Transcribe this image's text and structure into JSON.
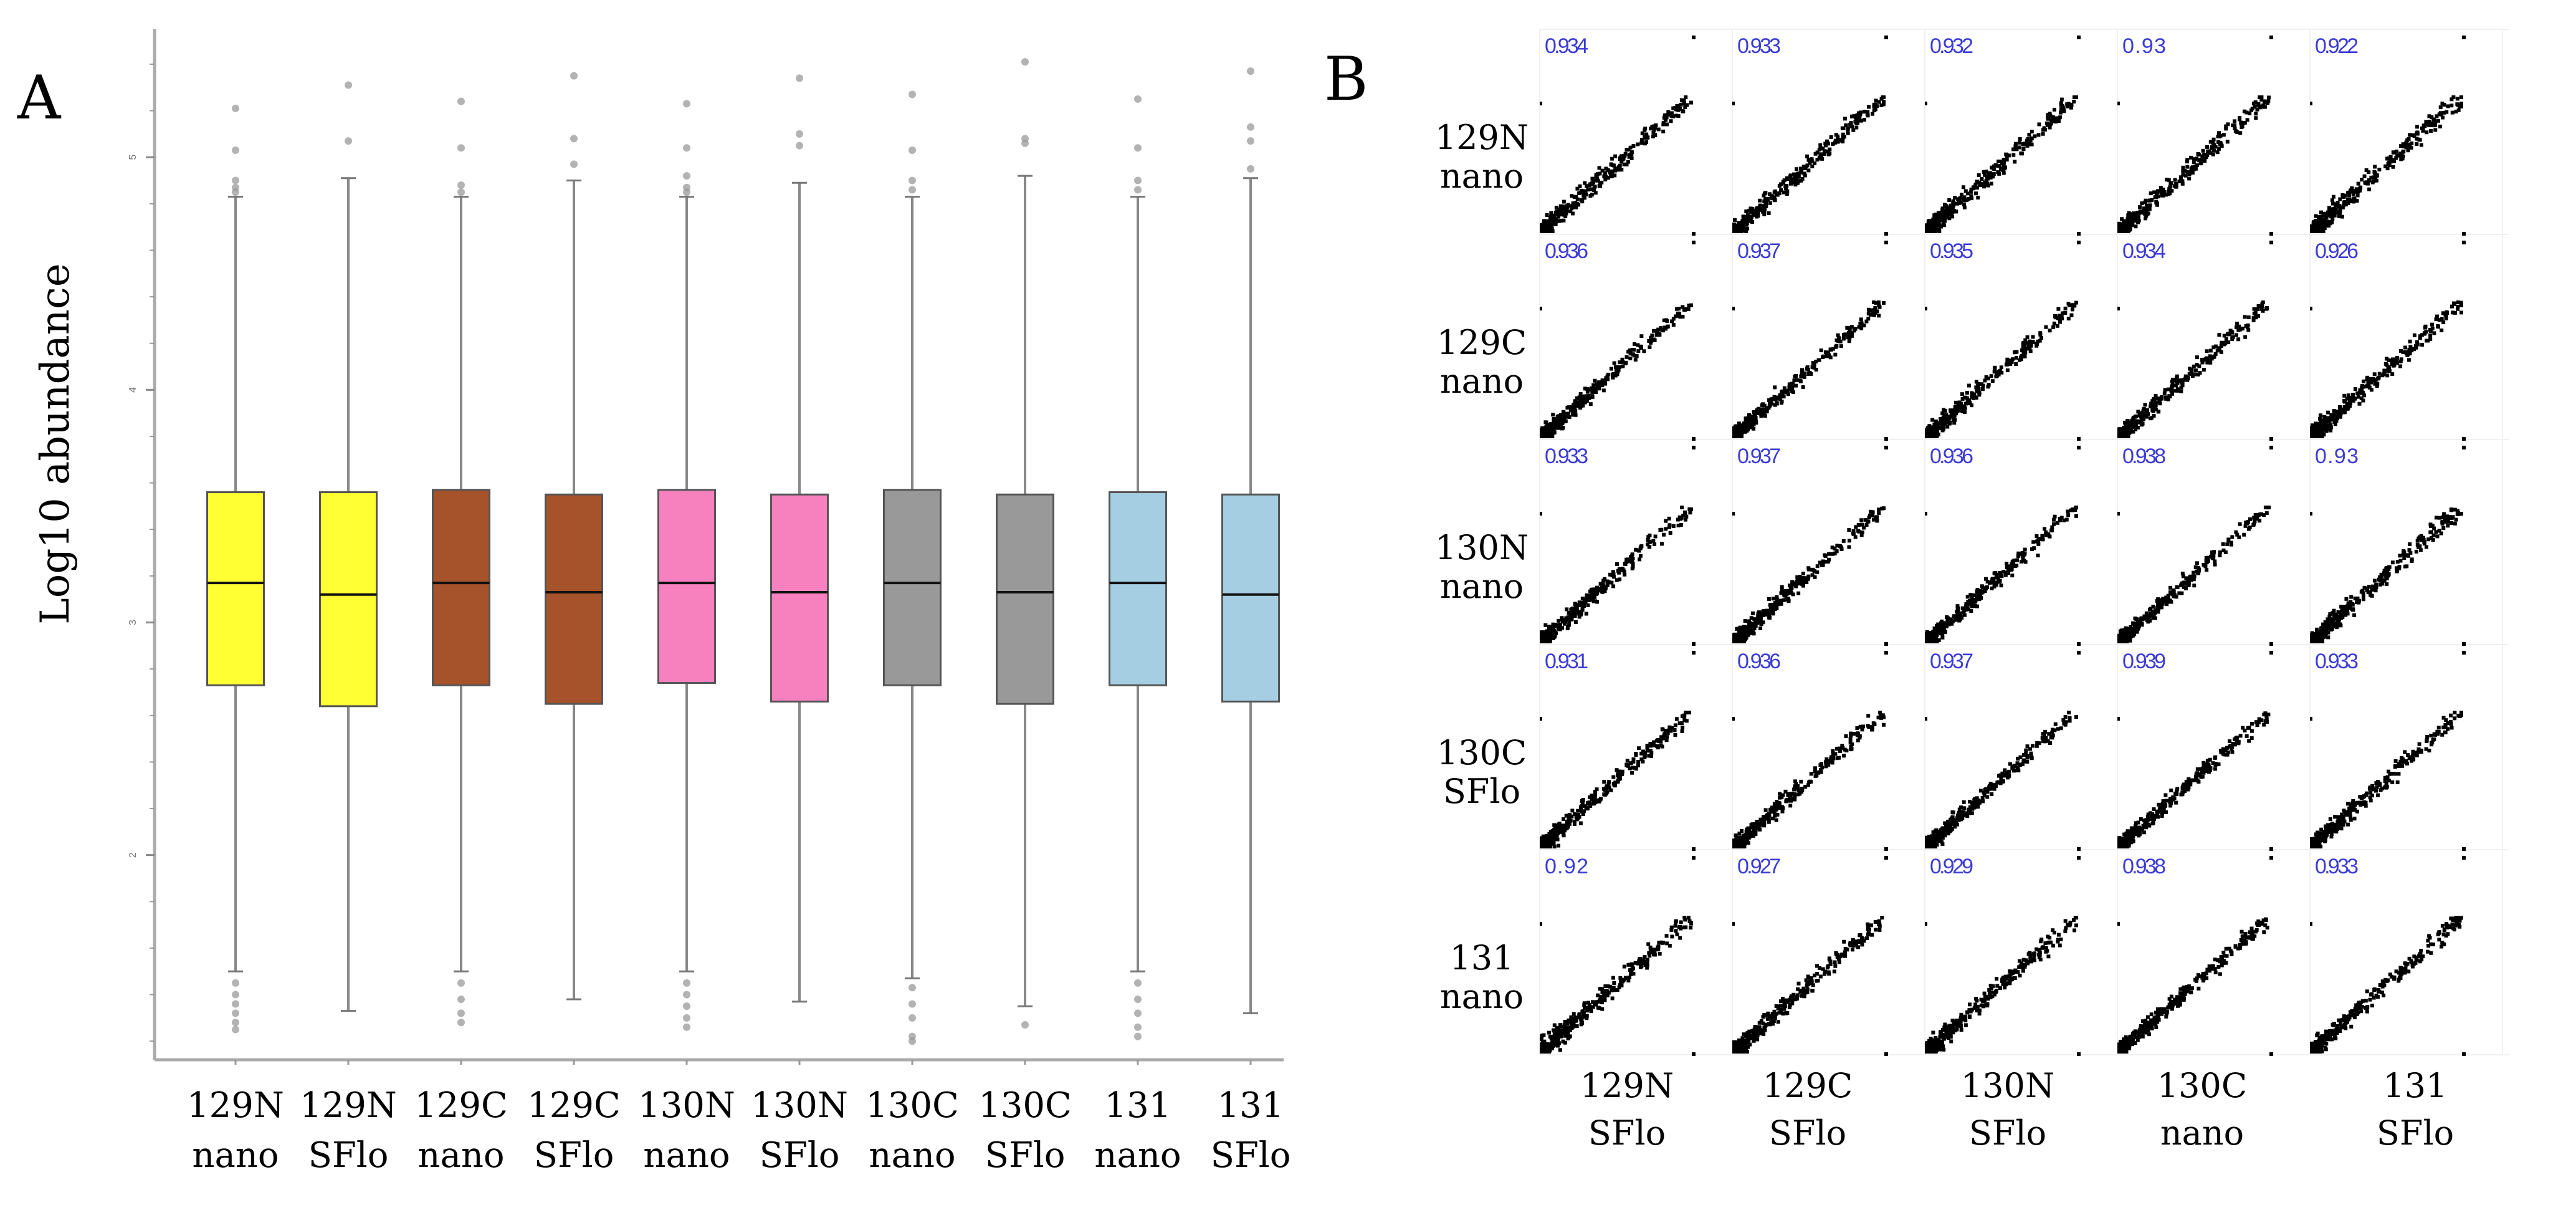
{
  "panels": {
    "a_label": "A",
    "b_label": "B"
  },
  "colors": {
    "yellow": "#ffff33",
    "brown": "#a6522a",
    "pink": "#f781bf",
    "gray": "#999999",
    "lightblue": "#a6cee3",
    "corr_text": "#3b3bd6"
  },
  "chart_data": [
    {
      "type": "boxplot",
      "title": "",
      "ylabel": "Log10 abundance",
      "xlabel": "",
      "ylim": [
        1.12,
        5.55
      ],
      "yticks": [
        "2",
        "3",
        "4",
        "5"
      ],
      "categories": [
        {
          "line1": "129N",
          "line2": "nano",
          "color": "#ffff33",
          "q1": 2.73,
          "median": 3.17,
          "q3": 3.56,
          "whisker_low": 1.5,
          "whisker_high": 4.83,
          "outliers": [
            5.21,
            5.03,
            4.9,
            4.87,
            4.85,
            1.45,
            1.4,
            1.36,
            1.32,
            1.28,
            1.25
          ]
        },
        {
          "line1": "129N",
          "line2": "SFlo",
          "color": "#ffff33",
          "q1": 2.64,
          "median": 3.12,
          "q3": 3.56,
          "whisker_low": 1.33,
          "whisker_high": 4.91,
          "outliers": [
            5.31,
            5.07
          ]
        },
        {
          "line1": "129C",
          "line2": "nano",
          "color": "#a6522a",
          "q1": 2.73,
          "median": 3.17,
          "q3": 3.57,
          "whisker_low": 1.5,
          "whisker_high": 4.83,
          "outliers": [
            5.24,
            5.04,
            4.88,
            4.85,
            1.45,
            1.38,
            1.32,
            1.28
          ]
        },
        {
          "line1": "129C",
          "line2": "SFlo",
          "color": "#a6522a",
          "q1": 2.65,
          "median": 3.13,
          "q3": 3.55,
          "whisker_low": 1.38,
          "whisker_high": 4.9,
          "outliers": [
            5.35,
            5.08,
            4.97
          ]
        },
        {
          "line1": "130N",
          "line2": "nano",
          "color": "#f781bf",
          "q1": 2.74,
          "median": 3.17,
          "q3": 3.57,
          "whisker_low": 1.5,
          "whisker_high": 4.83,
          "outliers": [
            5.23,
            5.04,
            4.92,
            4.87,
            4.85,
            1.45,
            1.4,
            1.35,
            1.3,
            1.26
          ]
        },
        {
          "line1": "130N",
          "line2": "SFlo",
          "color": "#f781bf",
          "q1": 2.66,
          "median": 3.13,
          "q3": 3.55,
          "whisker_low": 1.37,
          "whisker_high": 4.89,
          "outliers": [
            5.34,
            5.1,
            5.05
          ]
        },
        {
          "line1": "130C",
          "line2": "nano",
          "color": "#999999",
          "q1": 2.73,
          "median": 3.17,
          "q3": 3.57,
          "whisker_low": 1.47,
          "whisker_high": 4.83,
          "outliers": [
            5.27,
            5.03,
            4.9,
            4.86,
            1.43,
            1.36,
            1.3,
            1.22,
            1.2
          ]
        },
        {
          "line1": "130C",
          "line2": "SFlo",
          "color": "#999999",
          "q1": 2.65,
          "median": 3.13,
          "q3": 3.55,
          "whisker_low": 1.35,
          "whisker_high": 4.92,
          "outliers": [
            5.41,
            5.08,
            5.06,
            1.27
          ]
        },
        {
          "line1": "131",
          "line2": "nano",
          "color": "#a6cee3",
          "q1": 2.73,
          "median": 3.17,
          "q3": 3.56,
          "whisker_low": 1.5,
          "whisker_high": 4.83,
          "outliers": [
            5.25,
            5.04,
            4.9,
            4.86,
            1.45,
            1.38,
            1.32,
            1.26,
            1.22
          ]
        },
        {
          "line1": "131",
          "line2": "SFlo",
          "color": "#a6cee3",
          "q1": 2.66,
          "median": 3.12,
          "q3": 3.55,
          "whisker_low": 1.32,
          "whisker_high": 4.91,
          "outliers": [
            5.37,
            5.13,
            5.07,
            4.95
          ]
        }
      ]
    },
    {
      "type": "scatter-matrix",
      "title": "",
      "rows": [
        {
          "line1": "129N",
          "line2": "nano"
        },
        {
          "line1": "129C",
          "line2": "nano"
        },
        {
          "line1": "130N",
          "line2": "nano"
        },
        {
          "line1": "130C",
          "line2": "SFlo"
        },
        {
          "line1": "131",
          "line2": "nano"
        }
      ],
      "columns": [
        {
          "line1": "129N",
          "line2": "SFlo"
        },
        {
          "line1": "129C",
          "line2": "SFlo"
        },
        {
          "line1": "130N",
          "line2": "SFlo"
        },
        {
          "line1": "130C",
          "line2": "nano"
        },
        {
          "line1": "131",
          "line2": "SFlo"
        }
      ],
      "correlations": [
        [
          "0.934",
          "0.933",
          "0.932",
          "0.93",
          "0.922"
        ],
        [
          "0.936",
          "0.937",
          "0.935",
          "0.934",
          "0.926"
        ],
        [
          "0.933",
          "0.937",
          "0.936",
          "0.938",
          "0.93"
        ],
        [
          "0.931",
          "0.936",
          "0.937",
          "0.939",
          "0.933"
        ],
        [
          "0.92",
          "0.927",
          "0.929",
          "0.938",
          "0.933"
        ]
      ]
    }
  ]
}
